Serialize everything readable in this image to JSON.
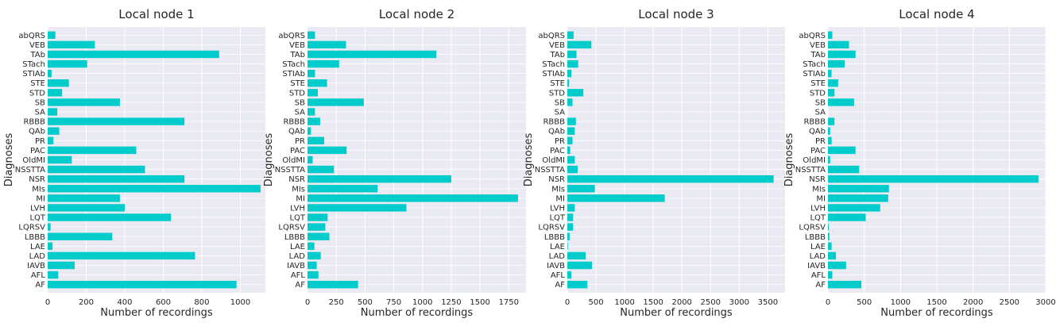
{
  "chart_data": [
    {
      "type": "bar",
      "orientation": "horizontal",
      "title": "Local node 1",
      "xlabel": "Number of recordings",
      "ylabel": "Diagnoses",
      "color": "#00cccc",
      "xlim": [
        0,
        1130
      ],
      "xticks": [
        0,
        200,
        400,
        600,
        800,
        1000
      ],
      "categories": [
        "abQRS",
        "VEB",
        "TAb",
        "STach",
        "STIAb",
        "STE",
        "STD",
        "SB",
        "SA",
        "RBBB",
        "QAb",
        "PR",
        "PAC",
        "OldMI",
        "NSSTTA",
        "NSR",
        "MIs",
        "MI",
        "LVH",
        "LQT",
        "LQRSV",
        "LBBB",
        "LAE",
        "LAD",
        "IAVB",
        "AFL",
        "AF"
      ],
      "values": [
        40,
        245,
        890,
        205,
        20,
        110,
        75,
        375,
        50,
        710,
        60,
        30,
        460,
        125,
        505,
        710,
        1105,
        375,
        400,
        640,
        15,
        335,
        25,
        765,
        140,
        55,
        980
      ]
    },
    {
      "type": "bar",
      "orientation": "horizontal",
      "title": "Local node 2",
      "xlabel": "Number of recordings",
      "ylabel": "Diagnoses",
      "color": "#00cccc",
      "xlim": [
        0,
        1900
      ],
      "xticks": [
        0,
        250,
        500,
        750,
        1000,
        1250,
        1500,
        1750
      ],
      "categories": [
        "abQRS",
        "VEB",
        "TAb",
        "STach",
        "STIAb",
        "STE",
        "STD",
        "SB",
        "SA",
        "RBBB",
        "QAb",
        "PR",
        "PAC",
        "OldMI",
        "NSSTTA",
        "NSR",
        "MIs",
        "MI",
        "LVH",
        "LQT",
        "LQRSV",
        "LBBB",
        "LAE",
        "LAD",
        "IAVB",
        "AFL",
        "AF"
      ],
      "values": [
        65,
        335,
        1120,
        275,
        65,
        170,
        90,
        490,
        65,
        110,
        30,
        145,
        340,
        45,
        230,
        1250,
        610,
        1830,
        860,
        175,
        155,
        190,
        60,
        115,
        80,
        95,
        440
      ]
    },
    {
      "type": "bar",
      "orientation": "horizontal",
      "title": "Local node 3",
      "xlabel": "Number of recordings",
      "ylabel": "Diagnoses",
      "color": "#00cccc",
      "xlim": [
        0,
        3800
      ],
      "xticks": [
        0,
        500,
        1000,
        1500,
        2000,
        2500,
        3000,
        3500
      ],
      "categories": [
        "abQRS",
        "VEB",
        "TAb",
        "STach",
        "STIAb",
        "STE",
        "STD",
        "SB",
        "SA",
        "RBBB",
        "QAb",
        "PR",
        "PAC",
        "OldMI",
        "NSSTTA",
        "NSR",
        "MIs",
        "MI",
        "LVH",
        "LQT",
        "LQRSV",
        "LBBB",
        "LAE",
        "LAD",
        "IAVB",
        "AFL",
        "AF"
      ],
      "values": [
        110,
        420,
        160,
        190,
        70,
        30,
        280,
        90,
        0,
        150,
        130,
        90,
        50,
        130,
        180,
        3600,
        480,
        1700,
        130,
        100,
        100,
        40,
        10,
        320,
        430,
        70,
        350
      ]
    },
    {
      "type": "bar",
      "orientation": "horizontal",
      "title": "Local node 4",
      "xlabel": "Number of recordings",
      "ylabel": "Diagnoses",
      "color": "#00cccc",
      "xlim": [
        0,
        3000
      ],
      "xticks": [
        0,
        500,
        1000,
        1500,
        2000,
        2500,
        3000
      ],
      "categories": [
        "abQRS",
        "VEB",
        "TAb",
        "STach",
        "STIAb",
        "STE",
        "STD",
        "SB",
        "SA",
        "RBBB",
        "QAb",
        "PR",
        "PAC",
        "OldMI",
        "NSSTTA",
        "NSR",
        "MIs",
        "MI",
        "LVH",
        "LQT",
        "LQRSV",
        "LBBB",
        "LAE",
        "LAD",
        "IAVB",
        "AFL",
        "AF"
      ],
      "values": [
        60,
        290,
        380,
        230,
        50,
        140,
        90,
        360,
        0,
        90,
        30,
        50,
        380,
        30,
        430,
        2900,
        840,
        830,
        720,
        520,
        10,
        20,
        50,
        110,
        250,
        60,
        460
      ]
    }
  ]
}
